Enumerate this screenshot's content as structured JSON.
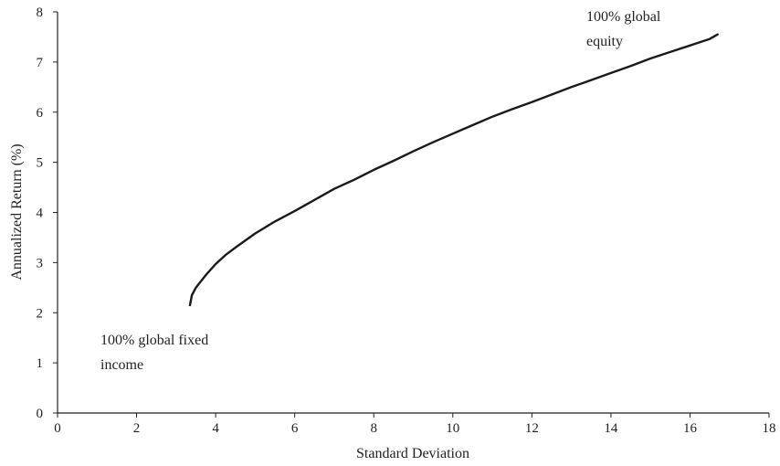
{
  "chart_data": {
    "type": "line",
    "title": "",
    "xlabel": "Standard Deviation",
    "ylabel": "Annualized Return (%)",
    "xlim": [
      0,
      18
    ],
    "ylim": [
      0,
      8
    ],
    "x_ticks": [
      "0",
      "2",
      "4",
      "6",
      "8",
      "10",
      "12",
      "14",
      "16",
      "18"
    ],
    "y_ticks": [
      "0",
      "1",
      "2",
      "3",
      "4",
      "5",
      "6",
      "7",
      "8"
    ],
    "grid": false,
    "series": [
      {
        "x": [
          3.35,
          3.4,
          3.5,
          3.75,
          4.0,
          4.25,
          4.5,
          5.0,
          5.5,
          6.0,
          6.5,
          7.0,
          7.5,
          8.0,
          8.5,
          9.0,
          9.5,
          10.0,
          10.5,
          11.0,
          11.5,
          12.0,
          12.5,
          13.0,
          13.5,
          14.0,
          14.5,
          15.0,
          15.5,
          16.0,
          16.5,
          16.7
        ],
        "y": [
          2.15,
          2.35,
          2.5,
          2.75,
          2.97,
          3.15,
          3.3,
          3.58,
          3.82,
          4.03,
          4.25,
          4.47,
          4.65,
          4.85,
          5.03,
          5.22,
          5.4,
          5.57,
          5.74,
          5.91,
          6.06,
          6.2,
          6.35,
          6.5,
          6.64,
          6.78,
          6.92,
          7.07,
          7.2,
          7.33,
          7.46,
          7.55
        ]
      }
    ],
    "annotations": {
      "equity_line1": "100% global",
      "equity_line2": "equity",
      "fixed_line1": "100% global fixed",
      "fixed_line2": "income"
    }
  }
}
